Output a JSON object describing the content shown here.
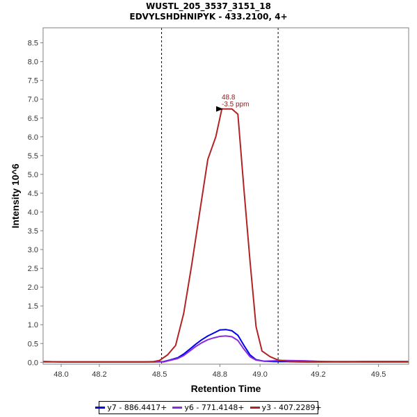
{
  "chart_data": {
    "type": "line",
    "title": "WUSTL_205_3537_3151_18",
    "subtitle": "EDVYLSHDHNIPYK - 433.2100, 4+",
    "xlabel": "Retention Time",
    "ylabel": "Intensity 10^6",
    "xlim": [
      47.9,
      49.72
    ],
    "ylim": [
      -0.05,
      8.9
    ],
    "x_ticks": [
      "48.0",
      "48.2",
      "48.5",
      "48.8",
      "49.0",
      "49.2",
      "49.5"
    ],
    "x_tick_values": [
      47.99,
      48.18,
      48.48,
      48.78,
      48.98,
      49.27,
      49.57
    ],
    "y_ticks": [
      "0.0",
      "0.5",
      "1.0",
      "1.5",
      "2.0",
      "2.5",
      "3.0",
      "3.5",
      "4.0",
      "4.5",
      "5.0",
      "5.5",
      "6.0",
      "6.5",
      "7.0",
      "7.5",
      "8.0",
      "8.5"
    ],
    "vlines": [
      48.49,
      49.07
    ],
    "annotation": {
      "line1": "48.8",
      "line2": "-3.5 ppm",
      "x": 48.81,
      "y": 6.74
    },
    "grid": false,
    "legend_position": "bottom",
    "series": [
      {
        "name": "y7 - 886.4417+",
        "color": "#0000ee",
        "x": [
          47.9,
          48.0,
          48.1,
          48.2,
          48.3,
          48.4,
          48.45,
          48.5,
          48.53,
          48.57,
          48.6,
          48.63,
          48.66,
          48.69,
          48.72,
          48.75,
          48.78,
          48.81,
          48.84,
          48.87,
          48.9,
          48.93,
          48.96,
          49.0,
          49.05,
          49.1,
          49.2,
          49.3,
          49.4,
          49.5,
          49.6,
          49.72
        ],
        "y": [
          0.02,
          0.01,
          0.01,
          0.01,
          0.01,
          0.01,
          0.01,
          0.02,
          0.06,
          0.12,
          0.22,
          0.35,
          0.48,
          0.6,
          0.7,
          0.78,
          0.86,
          0.87,
          0.84,
          0.72,
          0.45,
          0.2,
          0.07,
          0.03,
          0.02,
          0.02,
          0.01,
          0.01,
          0.01,
          0.01,
          0.01,
          0.01
        ]
      },
      {
        "name": "y6 - 771.4148+",
        "color": "#8a2be2",
        "x": [
          47.9,
          48.0,
          48.1,
          48.2,
          48.3,
          48.4,
          48.45,
          48.5,
          48.53,
          48.57,
          48.6,
          48.63,
          48.66,
          48.69,
          48.72,
          48.75,
          48.78,
          48.81,
          48.84,
          48.87,
          48.9,
          48.93,
          48.96,
          49.0,
          49.05,
          49.1,
          49.2,
          49.3,
          49.4,
          49.5,
          49.6,
          49.72
        ],
        "y": [
          0.01,
          0.01,
          0.01,
          0.01,
          0.01,
          0.01,
          0.01,
          0.01,
          0.05,
          0.1,
          0.18,
          0.3,
          0.42,
          0.52,
          0.6,
          0.65,
          0.69,
          0.7,
          0.68,
          0.58,
          0.35,
          0.15,
          0.06,
          0.03,
          0.04,
          0.05,
          0.04,
          0.02,
          0.01,
          0.02,
          0.02,
          0.02
        ]
      },
      {
        "name": "y3 - 407.2289+",
        "color": "#b22222",
        "x": [
          47.9,
          48.0,
          48.1,
          48.2,
          48.3,
          48.4,
          48.45,
          48.48,
          48.52,
          48.56,
          48.6,
          48.64,
          48.68,
          48.72,
          48.76,
          48.79,
          48.81,
          48.84,
          48.87,
          48.9,
          48.93,
          48.96,
          48.99,
          49.03,
          49.07,
          49.12,
          49.2,
          49.3,
          49.4,
          49.5,
          49.6,
          49.72
        ],
        "y": [
          0.02,
          0.01,
          0.01,
          0.01,
          0.01,
          0.01,
          0.02,
          0.05,
          0.2,
          0.45,
          1.3,
          2.6,
          4.0,
          5.4,
          6.0,
          6.74,
          6.74,
          6.74,
          6.6,
          4.6,
          2.7,
          0.95,
          0.3,
          0.15,
          0.06,
          0.03,
          0.02,
          0.02,
          0.02,
          0.02,
          0.02,
          0.02
        ]
      }
    ]
  }
}
